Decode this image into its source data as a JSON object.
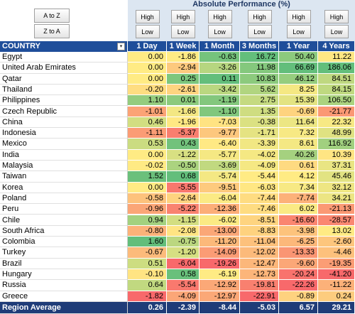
{
  "sort_buttons": [
    "A to Z",
    "Z to A"
  ],
  "header": {
    "title": "Absolute Performance (%)",
    "country_label": "COUNTRY"
  },
  "columns": [
    {
      "label": "1 Day",
      "buttons": [
        "High",
        "Low"
      ]
    },
    {
      "label": "1 Week",
      "buttons": [
        "High",
        "Low"
      ]
    },
    {
      "label": "1 Month",
      "buttons": [
        "High",
        "Low"
      ]
    },
    {
      "label": "3 Months",
      "buttons": [
        "High",
        "Low"
      ]
    },
    {
      "label": "1 Year",
      "buttons": [
        "High",
        "Low"
      ]
    },
    {
      "label": "4 Years",
      "buttons": [
        "High",
        "Low"
      ]
    }
  ],
  "rows": [
    {
      "country": "Egypt",
      "values": [
        "0.00",
        "-1.86",
        "-0.63",
        "16.72",
        "50.40",
        "11.22"
      ]
    },
    {
      "country": "United Arab Emirates",
      "values": [
        "0.00",
        "-2.94",
        "-3.26",
        "11.98",
        "66.69",
        "186.06"
      ]
    },
    {
      "country": "Qatar",
      "values": [
        "0.00",
        "0.25",
        "0.11",
        "10.83",
        "46.12",
        "84.51"
      ]
    },
    {
      "country": "Thailand",
      "values": [
        "-0.20",
        "-2.61",
        "-3.42",
        "5.62",
        "8.25",
        "84.15"
      ]
    },
    {
      "country": "Philippines",
      "values": [
        "1.10",
        "0.01",
        "-1.19",
        "2.75",
        "15.39",
        "106.50"
      ]
    },
    {
      "country": "Czech Republic",
      "values": [
        "-1.01",
        "-1.66",
        "-1.10",
        "1.35",
        "-0.69",
        "-21.77"
      ]
    },
    {
      "country": "China",
      "values": [
        "0.46",
        "-1.96",
        "-7.03",
        "-0.38",
        "11.64",
        "22.32"
      ]
    },
    {
      "country": "Indonesia",
      "values": [
        "-1.11",
        "-5.37",
        "-9.77",
        "-1.71",
        "7.32",
        "48.99"
      ]
    },
    {
      "country": "Mexico",
      "values": [
        "0.53",
        "0.43",
        "-6.40",
        "-3.39",
        "8.61",
        "116.92"
      ]
    },
    {
      "country": "India",
      "values": [
        "0.00",
        "-1.22",
        "-5.77",
        "-4.02",
        "40.26",
        "10.39"
      ]
    },
    {
      "country": "Malaysia",
      "values": [
        "-0.02",
        "-0.50",
        "-3.69",
        "-4.09",
        "0.61",
        "37.31"
      ]
    },
    {
      "country": "Taiwan",
      "values": [
        "1.52",
        "0.68",
        "-5.74",
        "-5.44",
        "4.12",
        "45.46"
      ]
    },
    {
      "country": "Korea",
      "values": [
        "0.00",
        "-5.55",
        "-9.51",
        "-6.03",
        "7.34",
        "32.12"
      ]
    },
    {
      "country": "Poland",
      "values": [
        "-0.58",
        "-2.64",
        "-6.04",
        "-7.44",
        "-7.74",
        "34.21"
      ]
    },
    {
      "country": "Peru",
      "values": [
        "-0.96",
        "-5.22",
        "-12.36",
        "-7.46",
        "6.02",
        "-21.13"
      ]
    },
    {
      "country": "Chile",
      "values": [
        "0.94",
        "-1.15",
        "-6.02",
        "-8.51",
        "-16.60",
        "-28.57"
      ]
    },
    {
      "country": "South Africa",
      "values": [
        "-0.80",
        "-2.08",
        "-13.00",
        "-8.83",
        "-3.98",
        "13.02"
      ]
    },
    {
      "country": "Colombia",
      "values": [
        "1.60",
        "-0.75",
        "-11.20",
        "-11.04",
        "-6.25",
        "-2.60"
      ]
    },
    {
      "country": "Turkey",
      "values": [
        "-0.67",
        "-1.20",
        "-14.09",
        "-12.02",
        "-13.33",
        "-4.46"
      ]
    },
    {
      "country": "Brazil",
      "values": [
        "0.51",
        "-6.04",
        "-19.26",
        "-12.47",
        "-9.60",
        "-19.35"
      ]
    },
    {
      "country": "Hungary",
      "values": [
        "-0.10",
        "0.58",
        "-6.19",
        "-12.73",
        "-20.24",
        "-41.20"
      ]
    },
    {
      "country": "Russia",
      "values": [
        "0.64",
        "-5.54",
        "-12.92",
        "-19.81",
        "-22.26",
        "-11.22"
      ]
    },
    {
      "country": "Greece",
      "values": [
        "-1.82",
        "-4.09",
        "-12.97",
        "-22.91",
        "-0.89",
        "0.24"
      ]
    }
  ],
  "footer": {
    "label": "Region Average",
    "values": [
      "0.26",
      "-2.39",
      "-8.44",
      "-5.03",
      "6.57",
      "29.21"
    ]
  }
}
